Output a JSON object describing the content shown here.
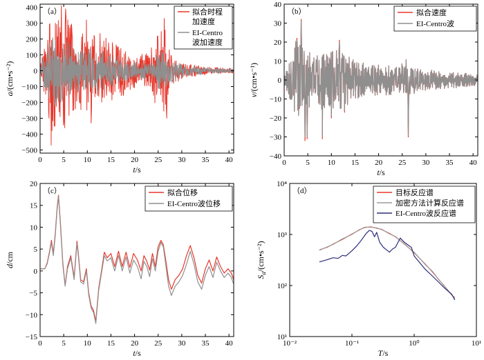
{
  "colors": {
    "fitted": "#e8372c",
    "elcentro": "#8f8f8f",
    "target": "#e8372c",
    "densified": "#9a9a9a",
    "elcentro_spec": "#2b2b7a"
  },
  "chart_data": [
    {
      "id": "a",
      "type": "line",
      "tag": "（a）",
      "xlabel_var": "t",
      "xlabel_unit": "/s",
      "ylabel_var": "a",
      "ylabel_unit": "/(cm•s⁻²)",
      "xlim": [
        0,
        41
      ],
      "ylim": [
        -520,
        420
      ],
      "xticks": [
        0,
        5,
        10,
        15,
        20,
        25,
        30,
        35,
        40
      ],
      "yticks": [
        400,
        300,
        200,
        100,
        0,
        -100,
        -200,
        -300,
        -400,
        -500
      ],
      "legend": [
        "拟合时程",
        "加速度",
        "EI-Centro",
        "波加速度"
      ],
      "series": [
        {
          "name": "拟合时程加速度",
          "color_key": "fitted",
          "seed": 11,
          "envelope": [
            [
              0,
              30
            ],
            [
              1.5,
              260
            ],
            [
              2.5,
              420
            ],
            [
              5.5,
              360
            ],
            [
              7,
              320
            ],
            [
              9,
              240
            ],
            [
              10.5,
              280
            ],
            [
              12,
              190
            ],
            [
              14,
              230
            ],
            [
              17,
              170
            ],
            [
              20,
              110
            ],
            [
              23,
              110
            ],
            [
              24.5,
              240
            ],
            [
              26.5,
              310
            ],
            [
              27.5,
              110
            ],
            [
              30,
              50
            ],
            [
              35,
              25
            ],
            [
              41,
              15
            ]
          ],
          "peaks": [
            [
              2.3,
              -470
            ],
            [
              3.2,
              300
            ],
            [
              4.5,
              410
            ],
            [
              5.4,
              390
            ],
            [
              9.8,
              320
            ],
            [
              10.8,
              -330
            ],
            [
              26.3,
              330
            ],
            [
              26.8,
              -300
            ],
            [
              2.0,
              290
            ],
            [
              1.9,
              -300
            ],
            [
              6.3,
              270
            ],
            [
              12.7,
              235
            ],
            [
              15.4,
              140
            ]
          ]
        },
        {
          "name": "EI-Centro波加速度",
          "color_key": "elcentro",
          "seed": 23,
          "envelope": [
            [
              0,
              20
            ],
            [
              1.5,
              160
            ],
            [
              2.5,
              230
            ],
            [
              5.5,
              200
            ],
            [
              7,
              170
            ],
            [
              9,
              140
            ],
            [
              11,
              150
            ],
            [
              14,
              120
            ],
            [
              20,
              60
            ],
            [
              24,
              60
            ],
            [
              25.5,
              140
            ],
            [
              27,
              100
            ],
            [
              30,
              40
            ],
            [
              35,
              20
            ],
            [
              41,
              12
            ]
          ],
          "peaks": []
        }
      ]
    },
    {
      "id": "b",
      "type": "line",
      "tag": "（b）",
      "xlabel_var": "t",
      "xlabel_unit": "/s",
      "ylabel_var": "v",
      "ylabel_unit": "/(cm•s⁻¹)",
      "xlim": [
        0,
        41
      ],
      "ylim": [
        -40,
        40
      ],
      "xticks": [
        0,
        5,
        10,
        15,
        20,
        25,
        30,
        35,
        40
      ],
      "yticks": [
        40,
        30,
        20,
        10,
        0,
        -10,
        -20,
        -30,
        -40
      ],
      "legend": [
        "拟合速度",
        "EI-Centro波"
      ],
      "series": [
        {
          "name": "拟合速度",
          "color_key": "fitted",
          "seed": 5,
          "envelope": [
            [
              0,
              3
            ],
            [
              1.5,
              12
            ],
            [
              2.5,
              22
            ],
            [
              4.5,
              22
            ],
            [
              6,
              12
            ],
            [
              8,
              16
            ],
            [
              12,
              16
            ],
            [
              15,
              10
            ],
            [
              20,
              8
            ],
            [
              24,
              8
            ],
            [
              26,
              12
            ],
            [
              28,
              6
            ],
            [
              33,
              5
            ],
            [
              41,
              3
            ]
          ],
          "peaks": [
            [
              3.6,
              32
            ],
            [
              4.4,
              -32
            ],
            [
              4.9,
              -31
            ],
            [
              8.1,
              -31
            ],
            [
              11.7,
              21
            ],
            [
              26.3,
              -30
            ],
            [
              2.7,
              22
            ],
            [
              3.2,
              -15
            ],
            [
              10.0,
              -20
            ],
            [
              12.8,
              -17
            ]
          ]
        },
        {
          "name": "EI-Centro波",
          "color_key": "elcentro",
          "seed": 5,
          "envelope": [
            [
              0,
              3
            ],
            [
              1.5,
              12
            ],
            [
              2.5,
              22
            ],
            [
              4.5,
              22
            ],
            [
              6,
              12
            ],
            [
              8,
              16
            ],
            [
              12,
              16
            ],
            [
              15,
              10
            ],
            [
              20,
              8
            ],
            [
              24,
              8
            ],
            [
              26,
              12
            ],
            [
              28,
              6
            ],
            [
              33,
              5
            ],
            [
              41,
              3
            ]
          ],
          "peaks": [
            [
              3.6,
              31
            ],
            [
              4.4,
              -30
            ],
            [
              4.9,
              -30
            ],
            [
              8.1,
              -30
            ],
            [
              11.7,
              20
            ],
            [
              26.3,
              -29
            ],
            [
              2.7,
              21
            ],
            [
              3.2,
              -14
            ],
            [
              10.0,
              -19
            ],
            [
              12.8,
              -16
            ]
          ]
        }
      ]
    },
    {
      "id": "c",
      "type": "line",
      "tag": "（c）",
      "xlabel_var": "t",
      "xlabel_unit": "/s",
      "ylabel_var": "d",
      "ylabel_unit": "/cm",
      "xlim": [
        0,
        41
      ],
      "ylim": [
        -15,
        20
      ],
      "xticks": [
        0,
        5,
        10,
        15,
        20,
        25,
        30,
        35,
        40
      ],
      "yticks": [
        20,
        15,
        10,
        5,
        0,
        -5,
        -10,
        -15
      ],
      "legend": [
        "拟合位移",
        "EI-Centro波位移"
      ],
      "series": [
        {
          "name": "拟合位移",
          "color_key": "fitted",
          "x": [
            0,
            1,
            1.5,
            2,
            2.4,
            2.8,
            3.2,
            3.6,
            3.9,
            4.3,
            4.8,
            5.3,
            5.8,
            6.5,
            7.2,
            7.8,
            8.1,
            8.6,
            9.2,
            9.8,
            10.3,
            10.8,
            11.3,
            11.8,
            12.4,
            13,
            13.6,
            14.2,
            15,
            15.8,
            16.6,
            17.4,
            18.2,
            19,
            19.8,
            20.6,
            21.4,
            22,
            22.6,
            23.2,
            23.8,
            24.4,
            25,
            25.6,
            26.1,
            26.6,
            27.2,
            27.8,
            28.6,
            29.4,
            30.2,
            31,
            31.8,
            32.6,
            33.4,
            34.2,
            35,
            35.8,
            36.6,
            37.4,
            38.2,
            39,
            39.8,
            40.5,
            41
          ],
          "y": [
            0.5,
            0.5,
            1.8,
            4.5,
            7,
            4,
            8.5,
            14.5,
            17.3,
            11,
            2,
            -3.3,
            1,
            3.5,
            -1.5,
            6.8,
            4,
            -2,
            -2.5,
            0.5,
            -5,
            -8,
            -9,
            -11.5,
            -4,
            0,
            4.3,
            3,
            4,
            1,
            4.5,
            1,
            4.3,
            0.8,
            4,
            2.5,
            0,
            3.5,
            2.2,
            0.2,
            4,
            1,
            5.5,
            7,
            6,
            2.5,
            -2,
            -4.2,
            -2,
            -1,
            0.5,
            3.5,
            5.8,
            3,
            -1,
            -2.8,
            0.5,
            2.5,
            0,
            3.2,
            1,
            -0.5,
            0.5,
            -0.5,
            -2
          ]
        },
        {
          "name": "EI-Centro波位移",
          "color_key": "elcentro",
          "x": [
            0,
            1,
            1.5,
            2,
            2.4,
            2.8,
            3.2,
            3.6,
            3.9,
            4.3,
            4.8,
            5.3,
            5.8,
            6.5,
            7.2,
            7.8,
            8.1,
            8.6,
            9.2,
            9.8,
            10.3,
            10.8,
            11.3,
            11.8,
            12.4,
            13,
            13.6,
            14.2,
            15,
            15.8,
            16.6,
            17.4,
            18.2,
            19,
            19.8,
            20.6,
            21.4,
            22,
            22.6,
            23.2,
            23.8,
            24.4,
            25,
            25.6,
            26.1,
            26.6,
            27.2,
            27.8,
            28.6,
            29.4,
            30.2,
            31,
            31.8,
            32.6,
            33.4,
            34.2,
            35,
            35.8,
            36.6,
            37.4,
            38.2,
            39,
            39.8,
            40.5,
            41
          ],
          "y": [
            0.5,
            0.5,
            1.6,
            4.2,
            6.5,
            3.5,
            8,
            14,
            17,
            10.5,
            1.5,
            -3.5,
            0.5,
            3,
            -2,
            6.3,
            3.5,
            -2.5,
            -3,
            0,
            -5.5,
            -8.5,
            -9.5,
            -12,
            -4.5,
            -0.5,
            3.5,
            2.3,
            3,
            0,
            3.5,
            0,
            3.2,
            -0.5,
            2.5,
            1,
            -1.8,
            2.2,
            1,
            -1.3,
            2.8,
            0,
            4.5,
            6.5,
            5.5,
            1.5,
            -3.5,
            -5.6,
            -3.5,
            -2.5,
            -1,
            1.5,
            4.5,
            1.5,
            -2.5,
            -4.2,
            -1,
            1,
            -1.5,
            2,
            0,
            -1.5,
            -0.5,
            -1.5,
            -3
          ]
        }
      ]
    },
    {
      "id": "d",
      "type": "line",
      "tag": "（d）",
      "xlabel_var": "T",
      "xlabel_unit": "/s",
      "ylabel_var": "S",
      "ylabel_sub": "a",
      "ylabel_unit": "/(cm•s⁻²)",
      "xscale": "log",
      "yscale": "log",
      "xlim": [
        0.01,
        10
      ],
      "ylim": [
        10,
        10000
      ],
      "xticks": [
        0.01,
        0.1,
        1,
        10
      ],
      "xticklabels": [
        "10⁻²",
        "10⁻¹",
        "10⁰",
        "10¹"
      ],
      "yticks": [
        10000,
        1000,
        100,
        10
      ],
      "yticklabels": [
        "10⁴",
        "10³",
        "10²",
        "10¹"
      ],
      "legend": [
        "目标反应谱",
        "加密方法计算反应谱",
        "EI-Centro波反应谱"
      ],
      "series": [
        {
          "name": "目标反应谱",
          "color_key": "target",
          "x": [
            0.03,
            0.04,
            0.05,
            0.07,
            0.1,
            0.13,
            0.16,
            0.2,
            0.25,
            0.3,
            0.4,
            0.5,
            0.7,
            1.0,
            1.5,
            2.0,
            2.5,
            3.0,
            3.5,
            4.0,
            4.5
          ],
          "y": [
            500,
            560,
            650,
            800,
            1020,
            1220,
            1380,
            1400,
            1340,
            1250,
            1050,
            900,
            650,
            440,
            265,
            180,
            130,
            100,
            80,
            65,
            58
          ]
        },
        {
          "name": "加密方法计算反应谱",
          "color_key": "densified",
          "x": [
            0.03,
            0.04,
            0.05,
            0.07,
            0.1,
            0.13,
            0.16,
            0.2,
            0.25,
            0.3,
            0.4,
            0.5,
            0.7,
            1.0,
            1.5,
            2.0,
            2.5,
            3.0,
            3.5,
            4.0,
            4.5
          ],
          "y": [
            490,
            570,
            640,
            820,
            1000,
            1240,
            1360,
            1420,
            1320,
            1270,
            1030,
            910,
            640,
            450,
            260,
            185,
            128,
            102,
            78,
            66,
            56
          ]
        },
        {
          "name": "EI-Centro波反应谱",
          "color_key": "elcentro_spec",
          "x": [
            0.03,
            0.04,
            0.05,
            0.06,
            0.07,
            0.08,
            0.1,
            0.12,
            0.14,
            0.17,
            0.19,
            0.21,
            0.23,
            0.25,
            0.28,
            0.32,
            0.36,
            0.4,
            0.45,
            0.5,
            0.55,
            0.6,
            0.65,
            0.7,
            0.8,
            0.9,
            1.0,
            1.2,
            1.5,
            2.0,
            2.5,
            3.0,
            3.5,
            4.0,
            4.5
          ],
          "y": [
            290,
            320,
            350,
            340,
            390,
            380,
            480,
            600,
            760,
            1050,
            1200,
            1150,
            900,
            1100,
            700,
            560,
            500,
            450,
            520,
            560,
            700,
            850,
            760,
            700,
            620,
            560,
            380,
            290,
            210,
            150,
            115,
            92,
            78,
            68,
            52
          ]
        }
      ]
    }
  ]
}
